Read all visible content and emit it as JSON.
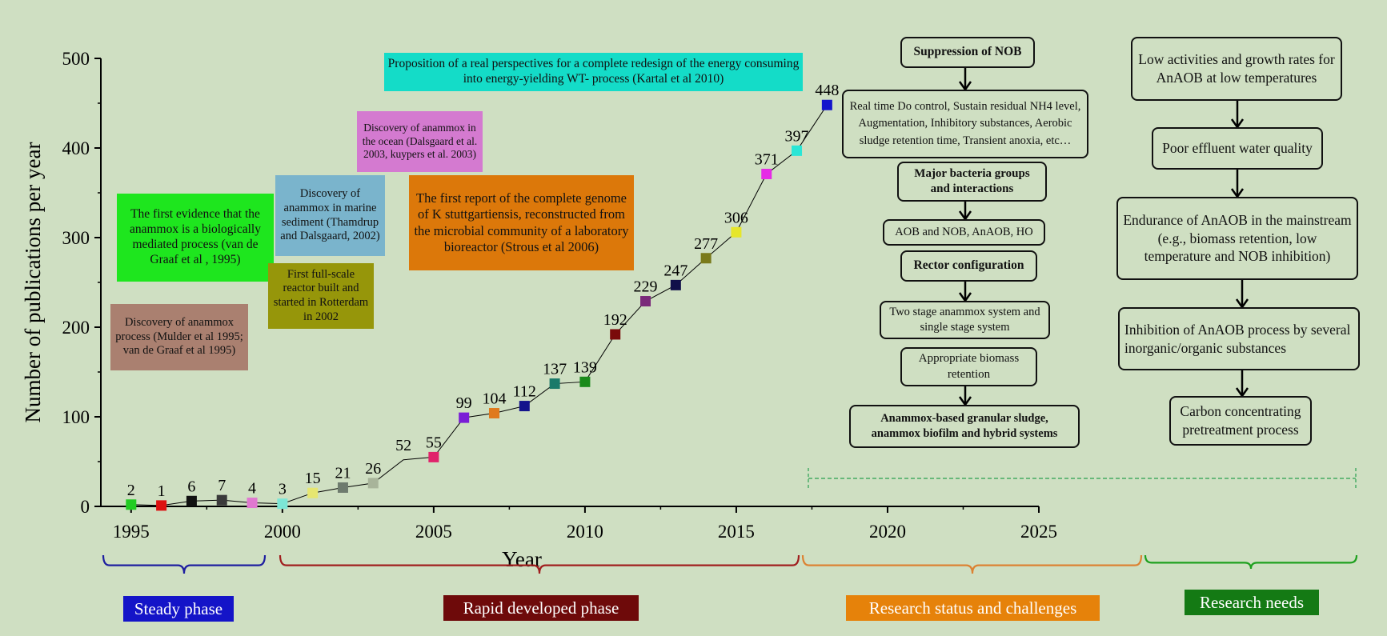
{
  "chart_data": {
    "type": "scatter",
    "xlabel": "Year",
    "ylabel": "Number of publications per year",
    "xlim": [
      1994,
      2025
    ],
    "ylim": [
      0,
      500
    ],
    "xticks": [
      1995,
      2000,
      2005,
      2010,
      2015,
      2020,
      2025
    ],
    "yticks": [
      0,
      100,
      200,
      300,
      400,
      500
    ],
    "points": [
      {
        "x": 1995,
        "y": 2,
        "label": "2",
        "color": "#22cc22"
      },
      {
        "x": 1996,
        "y": 1,
        "label": "1",
        "color": "#dd1111"
      },
      {
        "x": 1997,
        "y": 6,
        "label": "6",
        "color": "#111111"
      },
      {
        "x": 1998,
        "y": 7,
        "label": "7",
        "color": "#3a3a3a"
      },
      {
        "x": 1999,
        "y": 4,
        "label": "4",
        "color": "#e078d0"
      },
      {
        "x": 2000,
        "y": 3,
        "label": "3",
        "color": "#7ce6d6"
      },
      {
        "x": 2001,
        "y": 15,
        "label": "15",
        "color": "#e6e670"
      },
      {
        "x": 2002,
        "y": 21,
        "label": "21",
        "color": "#6e7b6e"
      },
      {
        "x": 2003,
        "y": 26,
        "label": "26",
        "color": "#a8b49a"
      },
      {
        "x": 2004,
        "y": 52,
        "label": "52",
        "color": null
      },
      {
        "x": 2005,
        "y": 55,
        "label": "55",
        "color": "#e0236b"
      },
      {
        "x": 2006,
        "y": 99,
        "label": "99",
        "color": "#7a1ed6"
      },
      {
        "x": 2007,
        "y": 104,
        "label": "104",
        "color": "#e07a1e"
      },
      {
        "x": 2008,
        "y": 112,
        "label": "112",
        "color": "#14148c"
      },
      {
        "x": 2009,
        "y": 137,
        "label": "137",
        "color": "#1a7a6a"
      },
      {
        "x": 2010,
        "y": 139,
        "label": "139",
        "color": "#1a8a1a"
      },
      {
        "x": 2011,
        "y": 192,
        "label": "192",
        "color": "#7a0a0a"
      },
      {
        "x": 2012,
        "y": 229,
        "label": "229",
        "color": "#7a2a7a"
      },
      {
        "x": 2013,
        "y": 247,
        "label": "247",
        "color": "#10104a"
      },
      {
        "x": 2014,
        "y": 277,
        "label": "277",
        "color": "#7a7a1a"
      },
      {
        "x": 2015,
        "y": 306,
        "label": "306",
        "color": "#e6e62a"
      },
      {
        "x": 2016,
        "y": 371,
        "label": "371",
        "color": "#e62ae6"
      },
      {
        "x": 2017,
        "y": 397,
        "label": "397",
        "color": "#2ae6d6"
      },
      {
        "x": 2018,
        "y": 448,
        "label": "448",
        "color": "#1414cc"
      }
    ],
    "annotations": [
      {
        "text": "Proposition of a real perspectives for a complete redesign of the energy consuming into energy-yielding WT- process (Kartal et al  2010)",
        "color": "#14dcc8"
      },
      {
        "text": "Discovery of anammox in the ocean (Dalsgaard et al. 2003, kuypers et al. 2003)",
        "color": "#d47ad0"
      },
      {
        "text": "The first evidence that the anammox is a biologically mediated process (van de Graaf et al , 1995)",
        "color": "#1ee61e"
      },
      {
        "text": "Discovery of anammox in marine sediment (Thamdrup and Dalsgaard, 2002)",
        "color": "#7ab4cc"
      },
      {
        "text": "The first report of the complete genome of K  stuttgartiensis, reconstructed from the microbial community of a laboratory bioreactor (Strous et al  2006)",
        "color": "#dc780a"
      },
      {
        "text": "First full-scale reactor built and started in Rotterdam in 2002",
        "color": "#96960a"
      },
      {
        "text": "Discovery of anammox process (Mulder et al  1995; van de Graaf et al  1995)",
        "color": "#aa8070"
      }
    ]
  },
  "phases": [
    {
      "label": "Steady phase",
      "bg": "#1414c8",
      "brace": "#1e1ea0"
    },
    {
      "label": "Rapid developed phase",
      "bg": "#6e0a0a",
      "brace": "#a01e1e"
    },
    {
      "label": "Research status and challenges",
      "bg": "#e6820a",
      "brace": "#dc8232"
    },
    {
      "label": "Research needs",
      "bg": "#147a14",
      "brace": "#1ea01e"
    }
  ],
  "flow_status": {
    "items": [
      "Suppression of NOB",
      "Real time Do control,  Sustain residual NH4 level, Augmentation, Inhibitory substances, Aerobic sludge retention time, Transient anoxia, etc…",
      "Major bacteria groups and interactions",
      "AOB and NOB, AnAOB, HO",
      "Rector configuration",
      "Two stage anammox system and single stage system",
      "Appropriate biomass retention",
      "Anammox-based granular sludge, anammox biofilm and hybrid systems"
    ]
  },
  "flow_needs": {
    "items": [
      "Low activities and growth rates for AnAOB at low temperatures",
      "Poor effluent water quality",
      "Endurance of AnAOB in the mainstream (e.g., biomass retention, low temperature and NOB inhibition)",
      "Inhibition of AnAOB process by several inorganic/organic substances",
      "Carbon concentrating pretreatment process"
    ]
  }
}
